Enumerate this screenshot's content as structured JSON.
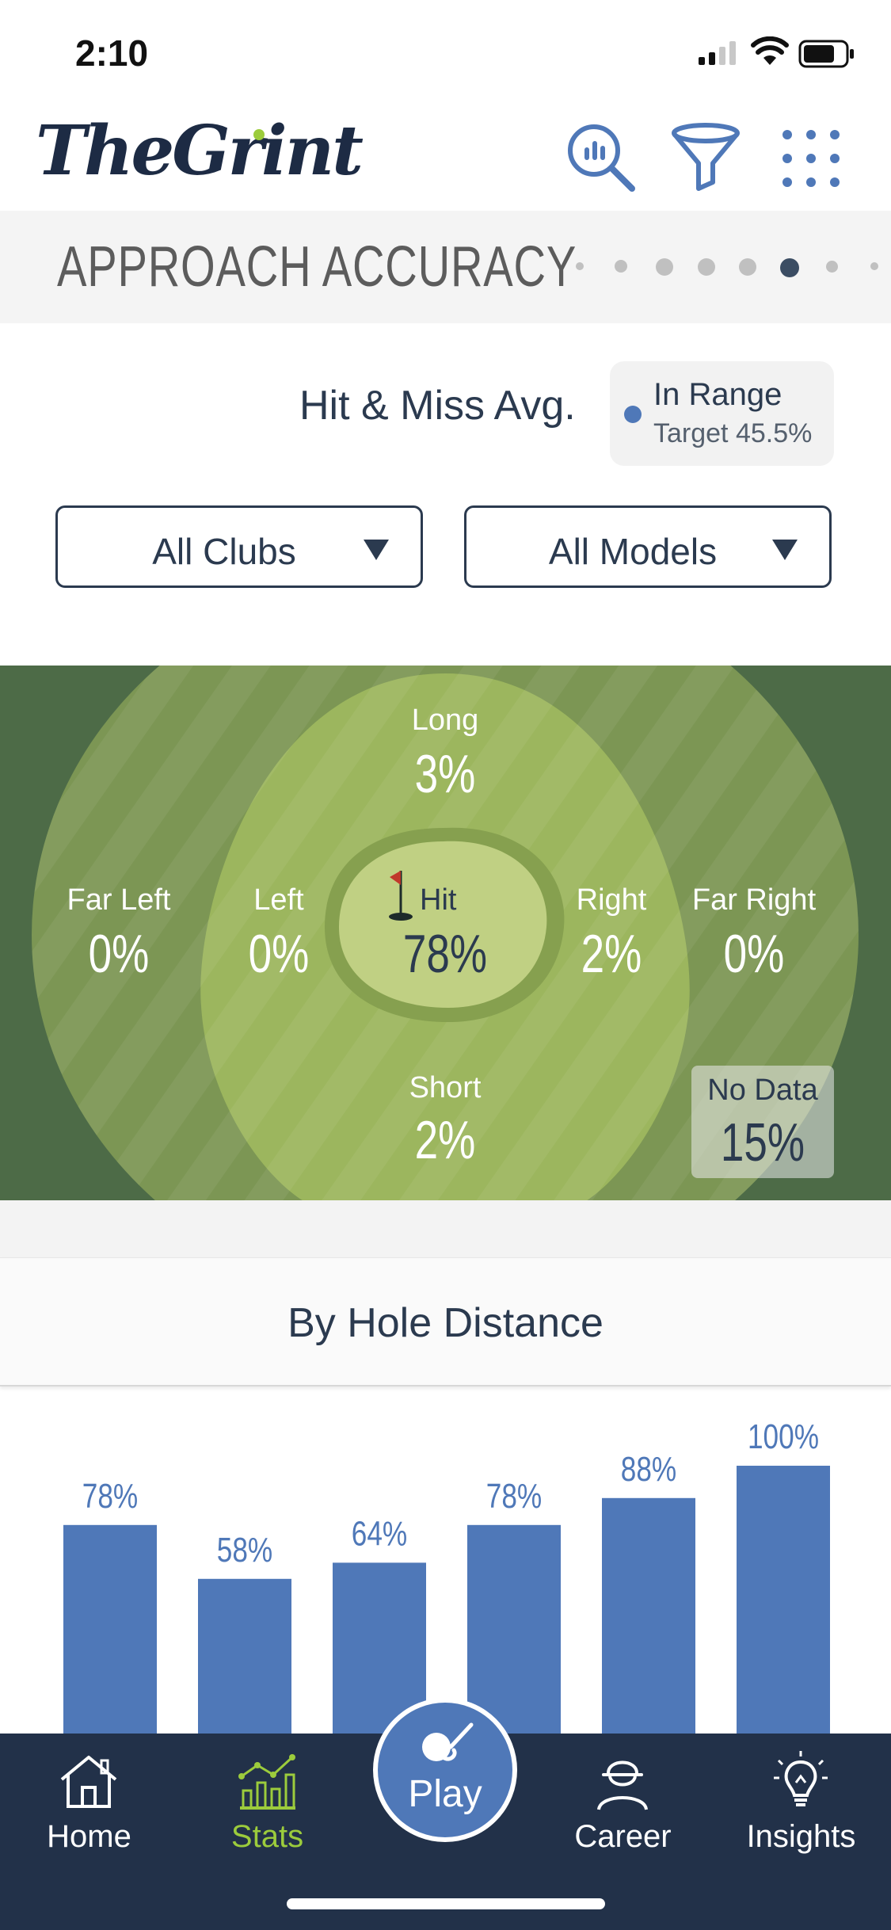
{
  "status_bar": {
    "time": "2:10"
  },
  "header": {
    "logo": "TheGrint"
  },
  "section": {
    "title": "APPROACH ACCURACY",
    "page_count": 8,
    "active_page": 6
  },
  "hit_miss": {
    "label": "Hit & Miss Avg.",
    "legend_title": "In Range",
    "legend_target": "Target 45.5%",
    "legend_color": "#4f78b8"
  },
  "filters": {
    "clubs": "All Clubs",
    "models": "All Models"
  },
  "field": {
    "long": {
      "label": "Long",
      "value": "3%"
    },
    "far_left": {
      "label": "Far Left",
      "value": "0%"
    },
    "left": {
      "label": "Left",
      "value": "0%"
    },
    "hit": {
      "label": "Hit",
      "value": "78%"
    },
    "right": {
      "label": "Right",
      "value": "2%"
    },
    "far_right": {
      "label": "Far Right",
      "value": "0%"
    },
    "short": {
      "label": "Short",
      "value": "2%"
    },
    "no_data": {
      "label": "No Data",
      "value": "15%"
    }
  },
  "by_hole_distance": {
    "title": "By Hole Distance"
  },
  "chart_data": {
    "type": "bar",
    "values": [
      78,
      58,
      64,
      78,
      88,
      100
    ],
    "labels": [
      "78%",
      "58%",
      "64%",
      "78%",
      "88%",
      "100%"
    ],
    "ylim": [
      0,
      100
    ],
    "bar_color": "#4f78b8"
  },
  "tabbar": {
    "home": "Home",
    "stats": "Stats",
    "play": "Play",
    "career": "Career",
    "insights": "Insights",
    "active": "Stats",
    "active_color": "#9ccc3c"
  }
}
